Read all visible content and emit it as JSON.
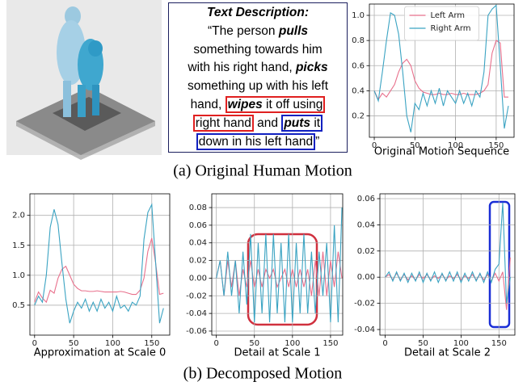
{
  "text_description": {
    "title": "Text Description:",
    "parts": [
      "“The person ",
      "pulls",
      "something towards him",
      "with his right hand, ",
      "picks",
      "something up with his left",
      "hand, ",
      "wipes",
      " it off using",
      "right hand",
      " and ",
      "puts",
      " it",
      "down in his left hand",
      "”"
    ]
  },
  "captions": [
    "(a) Original Human Motion",
    "(b) Decomposed Motion"
  ],
  "chart_data": [
    {
      "type": "line",
      "xlabel": "Original Motion Sequence",
      "grid": true,
      "legend": "upper center",
      "x": [
        0,
        5,
        10,
        15,
        20,
        25,
        30,
        35,
        40,
        45,
        50,
        55,
        60,
        65,
        70,
        75,
        80,
        85,
        90,
        95,
        100,
        105,
        110,
        115,
        120,
        125,
        130,
        135,
        140,
        145,
        150,
        155,
        160,
        165
      ],
      "xlim": [
        -6,
        172
      ],
      "xticks": [
        0,
        50,
        100,
        150
      ],
      "ylim": [
        0.03,
        1.09
      ],
      "yticks": [
        0.2,
        0.4,
        0.6,
        0.8,
        {
          "value": 1,
          "label": "1.0"
        }
      ],
      "series": [
        {
          "name": "Left Arm",
          "color": "#e8708c",
          "values": [
            0.4,
            0.33,
            0.38,
            0.35,
            0.4,
            0.45,
            0.55,
            0.62,
            0.65,
            0.6,
            0.48,
            0.42,
            0.39,
            0.38,
            0.37,
            0.37,
            0.38,
            0.37,
            0.37,
            0.38,
            0.37,
            0.37,
            0.38,
            0.37,
            0.37,
            0.37,
            0.38,
            0.4,
            0.45,
            0.7,
            0.8,
            0.78,
            0.35,
            0.35
          ]
        },
        {
          "name": "Right Arm",
          "color": "#3aa3c2",
          "values": [
            0.4,
            0.32,
            0.55,
            0.8,
            1.02,
            1.0,
            0.85,
            0.55,
            0.2,
            0.07,
            0.3,
            0.25,
            0.38,
            0.28,
            0.4,
            0.3,
            0.42,
            0.28,
            0.4,
            0.35,
            0.3,
            0.4,
            0.3,
            0.38,
            0.28,
            0.4,
            0.35,
            0.55,
            1.0,
            1.05,
            1.08,
            0.6,
            0.1,
            0.28
          ]
        }
      ]
    },
    {
      "type": "line",
      "xlabel": "Approximation at Scale 0",
      "grid": true,
      "x": [
        0,
        5,
        10,
        15,
        20,
        25,
        30,
        35,
        40,
        45,
        50,
        55,
        60,
        65,
        70,
        75,
        80,
        85,
        90,
        95,
        100,
        105,
        110,
        115,
        120,
        125,
        130,
        135,
        140,
        145,
        150,
        155,
        160,
        165
      ],
      "xlim": [
        -6,
        173
      ],
      "xticks": [
        0,
        50,
        100,
        150
      ],
      "ylim": [
        0.0,
        2.36
      ],
      "yticks": [
        0.5,
        {
          "value": 1,
          "label": "1.0"
        },
        1.5,
        {
          "value": 2,
          "label": "2.0"
        }
      ],
      "series": [
        {
          "color": "#e8708c",
          "values": [
            0.55,
            0.72,
            0.62,
            0.55,
            0.75,
            0.7,
            0.95,
            1.1,
            1.15,
            1.0,
            0.85,
            0.78,
            0.74,
            0.74,
            0.73,
            0.73,
            0.74,
            0.73,
            0.72,
            0.72,
            0.72,
            0.72,
            0.73,
            0.72,
            0.7,
            0.68,
            0.68,
            0.75,
            0.95,
            1.4,
            1.62,
            1.2,
            0.68,
            0.7
          ]
        },
        {
          "color": "#3aa3c2",
          "values": [
            0.5,
            0.65,
            0.55,
            1.0,
            1.8,
            2.1,
            1.85,
            1.2,
            0.6,
            0.2,
            0.4,
            0.55,
            0.45,
            0.6,
            0.4,
            0.55,
            0.4,
            0.6,
            0.45,
            0.55,
            0.4,
            0.65,
            0.45,
            0.5,
            0.4,
            0.55,
            0.5,
            0.65,
            1.6,
            2.05,
            2.18,
            1.2,
            0.2,
            0.45
          ]
        }
      ]
    },
    {
      "type": "line",
      "xlabel": "Detail at Scale 1",
      "grid": true,
      "x": [
        0,
        5,
        10,
        15,
        20,
        25,
        30,
        35,
        40,
        45,
        50,
        55,
        60,
        65,
        70,
        75,
        80,
        85,
        90,
        95,
        100,
        105,
        110,
        115,
        120,
        125,
        130,
        135,
        140,
        145,
        150,
        155,
        160,
        165
      ],
      "xlim": [
        -6,
        166
      ],
      "xticks": [
        0,
        50,
        100,
        150
      ],
      "ylim": [
        -0.0646,
        0.0956
      ],
      "yticks": [
        -0.06,
        -0.04,
        -0.02,
        {
          "value": 0,
          "label": "0.00"
        },
        0.02,
        0.04,
        0.06,
        0.08
      ],
      "series": [
        {
          "color": "#e8708c",
          "values": [
            0.0,
            0.02,
            -0.02,
            0.02,
            -0.01,
            0.02,
            -0.02,
            0.01,
            -0.01,
            0.02,
            -0.01,
            0.01,
            -0.01,
            0.01,
            0.0,
            0.01,
            -0.01,
            0.0,
            0.01,
            -0.01,
            0.01,
            -0.01,
            0.01,
            -0.01,
            0.01,
            -0.02,
            0.02,
            -0.02,
            0.03,
            -0.02,
            0.02,
            -0.01,
            0.03,
            0.0
          ]
        },
        {
          "color": "#3aa3c2",
          "values": [
            0.0,
            0.02,
            -0.02,
            0.03,
            -0.02,
            0.02,
            -0.04,
            0.03,
            -0.03,
            0.05,
            -0.05,
            0.04,
            -0.04,
            0.05,
            -0.05,
            0.05,
            -0.04,
            0.04,
            -0.05,
            0.05,
            -0.05,
            0.04,
            -0.04,
            0.05,
            -0.04,
            0.03,
            -0.04,
            0.03,
            -0.02,
            0.04,
            -0.05,
            0.06,
            -0.05,
            0.08
          ]
        }
      ]
    },
    {
      "type": "line",
      "xlabel": "Detail at Scale 2",
      "grid": true,
      "x": [
        0,
        5,
        10,
        15,
        20,
        25,
        30,
        35,
        40,
        45,
        50,
        55,
        60,
        65,
        70,
        75,
        80,
        85,
        90,
        95,
        100,
        105,
        110,
        115,
        120,
        125,
        130,
        135,
        140,
        145,
        150,
        155,
        160,
        165
      ],
      "xlim": [
        -7,
        171
      ],
      "xticks": [
        0,
        50,
        100,
        150
      ],
      "ylim": [
        -0.0443,
        0.0637
      ],
      "yticks": [
        -0.04,
        -0.02,
        {
          "value": 0,
          "label": "0.00"
        },
        0.02,
        0.04,
        0.06
      ],
      "series": [
        {
          "color": "#e8708c",
          "values": [
            0.0,
            0.002,
            -0.002,
            0.003,
            -0.002,
            0.002,
            -0.002,
            0.001,
            -0.002,
            0.002,
            -0.001,
            0.002,
            -0.002,
            0.001,
            -0.001,
            0.002,
            -0.002,
            0.001,
            -0.001,
            0.002,
            -0.002,
            0.001,
            -0.001,
            0.002,
            -0.002,
            0.002,
            -0.002,
            0.002,
            -0.003,
            0.003,
            -0.003,
            0.004,
            -0.025,
            0.015
          ]
        },
        {
          "color": "#3aa3c2",
          "values": [
            0.0,
            0.004,
            -0.003,
            0.004,
            -0.003,
            0.003,
            -0.004,
            0.003,
            -0.003,
            0.004,
            -0.004,
            0.003,
            -0.003,
            0.004,
            -0.004,
            0.003,
            -0.003,
            0.004,
            -0.003,
            0.004,
            -0.004,
            0.003,
            -0.003,
            0.004,
            -0.003,
            0.003,
            -0.004,
            0.004,
            -0.004,
            0.006,
            0.01,
            0.057,
            -0.02,
            0.0
          ]
        }
      ]
    }
  ]
}
